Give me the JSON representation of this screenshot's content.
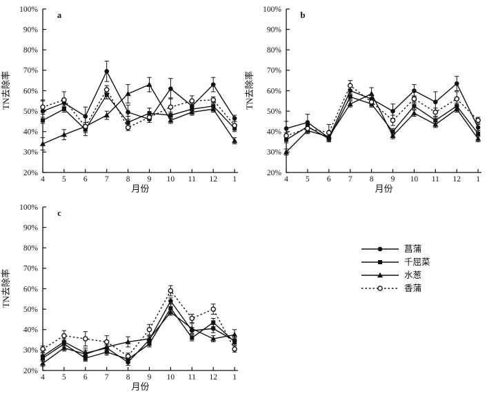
{
  "figure": {
    "background": "#ffffff",
    "ink_color": "#111111",
    "ylabel": "TN去除率",
    "xlabel": "月份",
    "yticks": [
      "100%",
      "90%",
      "80%",
      "70%",
      "60%",
      "50%",
      "40%",
      "30%",
      "20%"
    ],
    "xticks": [
      "4",
      "5",
      "6",
      "7",
      "8",
      "9",
      "10",
      "11",
      "12",
      "1"
    ]
  },
  "legend": {
    "items": [
      {
        "label": "菖蒲",
        "marker": "circle-filled",
        "line": "solid"
      },
      {
        "label": "千屈菜",
        "marker": "square-filled",
        "line": "solid"
      },
      {
        "label": "水葱",
        "marker": "triangle-filled",
        "line": "solid"
      },
      {
        "label": "香蒲",
        "marker": "circle-open",
        "line": "dotted"
      }
    ]
  },
  "chart_data": [
    {
      "type": "line",
      "panel_label": "a",
      "xlabel": "月份",
      "ylabel": "TN去除率",
      "x": [
        "4",
        "5",
        "6",
        "7",
        "8",
        "9",
        "10",
        "11",
        "12",
        "1"
      ],
      "ylim": [
        20,
        100
      ],
      "ytick_step": 10,
      "grid": false,
      "series": [
        {
          "name": "菖蒲",
          "marker": "circle-filled",
          "line": "solid",
          "values": [
            50,
            54,
            47.5,
            69.5,
            49.5,
            46,
            61,
            52.5,
            63,
            46.5
          ],
          "err": [
            5,
            2,
            4.5,
            5,
            3.5,
            1.5,
            5,
            1.5,
            3.5,
            1.5
          ]
        },
        {
          "name": "千屈菜",
          "marker": "square-filled",
          "line": "solid",
          "values": [
            45.5,
            51,
            41,
            58,
            44.5,
            49,
            48,
            51,
            52.5,
            41.5
          ],
          "err": [
            1.5,
            1.5,
            1.5,
            2,
            3,
            2.5,
            1.5,
            1.5,
            1.5,
            1.5
          ]
        },
        {
          "name": "水葱",
          "marker": "triangle-filled",
          "line": "solid",
          "values": [
            34,
            38.5,
            42.5,
            48,
            58.5,
            63,
            45.5,
            49.5,
            51,
            35.5
          ],
          "err": [
            3,
            2.5,
            4.5,
            2,
            4.5,
            3.5,
            1.5,
            1.5,
            1.5,
            1.5
          ]
        },
        {
          "name": "香蒲",
          "marker": "circle-open",
          "line": "dotted",
          "values": [
            52,
            55.5,
            42.5,
            60.5,
            42,
            47,
            52,
            55,
            55.5,
            43
          ],
          "err": [
            3.5,
            4,
            2,
            2,
            1.5,
            1.5,
            4.5,
            2.5,
            1.5,
            2
          ]
        }
      ]
    },
    {
      "type": "line",
      "panel_label": "b",
      "xlabel": "月份",
      "ylabel": "TN去除率",
      "x": [
        "4",
        "5",
        "6",
        "7",
        "8",
        "9",
        "10",
        "11",
        "12",
        "1"
      ],
      "ylim": [
        20,
        100
      ],
      "ytick_step": 10,
      "grid": false,
      "series": [
        {
          "name": "菖蒲",
          "marker": "circle-filled",
          "line": "solid",
          "values": [
            41.5,
            44.5,
            37,
            60,
            56,
            50,
            60,
            54.5,
            63.5,
            42
          ],
          "err": [
            3.5,
            4,
            2,
            2,
            2,
            3.5,
            3,
            5,
            3.5,
            1.5
          ]
        },
        {
          "name": "千屈菜",
          "marker": "square-filled",
          "line": "solid",
          "values": [
            36,
            42.5,
            36.5,
            57,
            53.5,
            40,
            52.5,
            45.5,
            52.5,
            39
          ],
          "err": [
            1.5,
            1.5,
            1.5,
            1.5,
            1.5,
            1.5,
            1.5,
            1.5,
            1.5,
            1.5
          ]
        },
        {
          "name": "水葱",
          "marker": "triangle-filled",
          "line": "solid",
          "values": [
            30,
            40.5,
            37.5,
            53.5,
            58.5,
            38,
            49,
            43.5,
            51,
            36.5
          ],
          "err": [
            1.5,
            1.5,
            1.5,
            1.5,
            3,
            1.5,
            1.5,
            1.5,
            1.5,
            1.5
          ]
        },
        {
          "name": "香蒲",
          "marker": "circle-open",
          "line": "dotted",
          "values": [
            38,
            41.5,
            39.5,
            62.5,
            54.5,
            45.5,
            56,
            49.5,
            56,
            45.5
          ],
          "err": [
            1.5,
            2,
            4,
            2.5,
            2,
            2.5,
            1.5,
            2,
            3.5,
            1.5
          ]
        }
      ]
    },
    {
      "type": "line",
      "panel_label": "c",
      "xlabel": "月份",
      "ylabel": "TN去除率",
      "x": [
        "4",
        "5",
        "6",
        "7",
        "8",
        "9",
        "10",
        "11",
        "12",
        "1"
      ],
      "ylim": [
        20,
        100
      ],
      "ytick_step": 10,
      "grid": false,
      "series": [
        {
          "name": "菖蒲",
          "marker": "circle-filled",
          "line": "solid",
          "values": [
            27,
            34,
            28.5,
            31,
            24,
            35,
            54,
            39.5,
            40.5,
            34.5
          ],
          "err": [
            1.5,
            1.5,
            1.5,
            1.5,
            1.5,
            1.5,
            1.5,
            1.5,
            2,
            1.5
          ]
        },
        {
          "name": "千屈菜",
          "marker": "square-filled",
          "line": "solid",
          "values": [
            26,
            33,
            26,
            29,
            25.5,
            33,
            50.5,
            36,
            43.5,
            34
          ],
          "err": [
            1.5,
            1.5,
            1.5,
            1.5,
            1.5,
            1.5,
            2,
            1.5,
            2,
            1.5
          ]
        },
        {
          "name": "水葱",
          "marker": "triangle-filled",
          "line": "solid",
          "values": [
            23.5,
            31,
            28,
            31.5,
            34,
            35.5,
            48.5,
            40.5,
            35.5,
            37.5
          ],
          "err": [
            1.5,
            1.5,
            3,
            2,
            2.5,
            1.5,
            1.5,
            2.5,
            1.5,
            2.5
          ]
        },
        {
          "name": "香蒲",
          "marker": "circle-open",
          "line": "dotted",
          "values": [
            30.5,
            37,
            35.5,
            34,
            27,
            40,
            59,
            45.5,
            50,
            30.5
          ],
          "err": [
            1.5,
            2.5,
            3.5,
            3,
            1.5,
            2.5,
            2.5,
            2,
            2.5,
            1.5
          ]
        }
      ]
    }
  ]
}
